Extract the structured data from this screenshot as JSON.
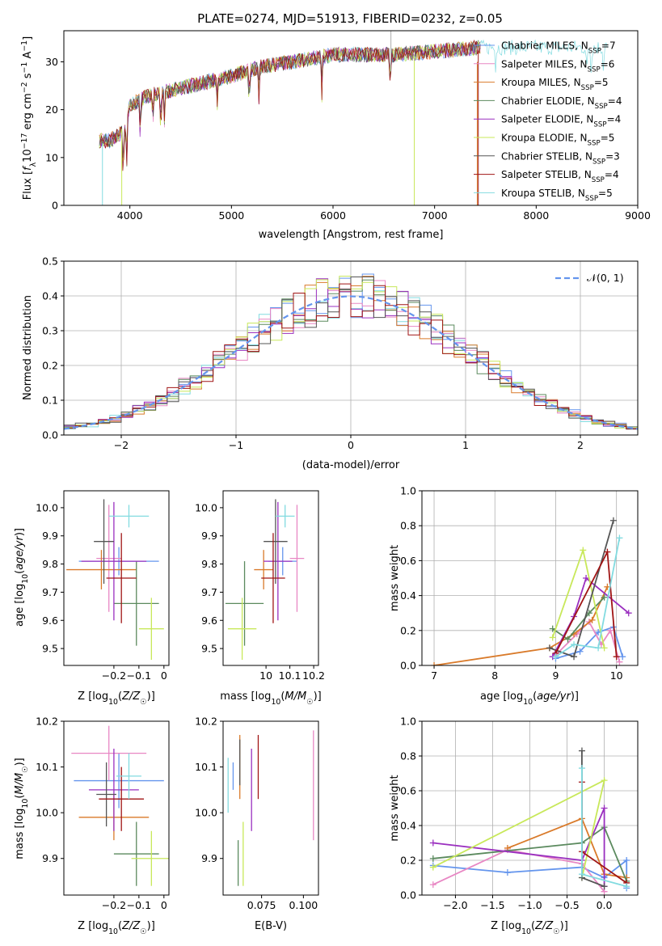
{
  "figure_title": "PLATE=0274, MJD=51913, FIBERID=0232, z=0.05",
  "colors": {
    "Chabrier MILES": "#6495ed",
    "Salpeter MILES": "#e887c4",
    "Kroupa MILES": "#d97a2a",
    "Chabrier ELODIE": "#5b8a5e",
    "Salpeter ELODIE": "#9a2fbf",
    "Kroupa ELODIE": "#c8e85a",
    "Chabrier STELIB": "#555555",
    "Salpeter STELIB": "#a01515",
    "Kroupa STELIB": "#82dbe0"
  },
  "chart_data": [
    {
      "id": "spectrum",
      "type": "line",
      "xlabel": "wavelength [Angstrom, rest frame]",
      "ylabel": "Flux [fλ10⁻¹⁷ erg cm⁻² s⁻¹ A⁻¹]",
      "xlim": [
        3350,
        9000
      ],
      "ylim": [
        0,
        36.5
      ],
      "xticks": [
        4000,
        5000,
        6000,
        7000,
        8000,
        9000
      ],
      "yticks": [
        0,
        10,
        20,
        30
      ],
      "legend_position": "right",
      "continuum_x": [
        3700,
        3800,
        3900,
        3960,
        4000,
        4200,
        4500,
        4800,
        5000,
        5300,
        5600,
        6000,
        6300,
        6600,
        6900,
        7200,
        7450
      ],
      "continuum_y": [
        13.5,
        13.5,
        15,
        16,
        21,
        23,
        24.5,
        26,
        27,
        29,
        30,
        31.5,
        31.5,
        31.5,
        32,
        32.5,
        33
      ],
      "spectrum_end_x": [
        7450,
        7450,
        7450,
        7450,
        7450,
        7450,
        7450,
        7450,
        8700
      ],
      "series": [
        {
          "name": "Chabrier MILES",
          "nssp": "7"
        },
        {
          "name": "Salpeter MILES",
          "nssp": "6"
        },
        {
          "name": "Kroupa MILES",
          "nssp": "5"
        },
        {
          "name": "Chabrier ELODIE",
          "nssp": "4"
        },
        {
          "name": "Salpeter ELODIE",
          "nssp": "4"
        },
        {
          "name": "Kroupa ELODIE",
          "nssp": "5"
        },
        {
          "name": "Chabrier STELIB",
          "nssp": "3"
        },
        {
          "name": "Salpeter STELIB",
          "nssp": "4"
        },
        {
          "name": "Kroupa STELIB",
          "nssp": "5"
        }
      ]
    },
    {
      "id": "residuals",
      "type": "bar",
      "xlabel": "(data-model)/error",
      "ylabel": "Normed distribution",
      "xlim": [
        -2.5,
        2.5
      ],
      "ylim": [
        0,
        0.5
      ],
      "xticks": [
        -2,
        -1,
        0,
        1,
        2
      ],
      "yticks": [
        0.0,
        0.1,
        0.2,
        0.3,
        0.4,
        0.5
      ],
      "bin_width": 0.1,
      "gaussian_label": "𝒩(0, 1)",
      "legend_position": "top-right",
      "grid": true
    },
    {
      "id": "age-vs-Z",
      "type": "scatter",
      "xlabel": "Z [log₁₀(Z/Z☉)]",
      "ylabel": "age  [log₁₀(age/yr)]",
      "xlim": [
        -0.4,
        0.02
      ],
      "ylim": [
        9.44,
        10.06
      ],
      "xticks": [
        -0.2,
        -0.1,
        0.0
      ],
      "yticks": [
        9.5,
        9.6,
        9.7,
        9.8,
        9.9,
        10.0
      ],
      "points": [
        {
          "x": -0.18,
          "xerr": 0.16,
          "y": 9.81,
          "yerr": 0.05
        },
        {
          "x": -0.22,
          "xerr": 0.05,
          "y": 9.82,
          "yerr": 0.19
        },
        {
          "x": -0.25,
          "xerr": 0.14,
          "y": 9.78,
          "yerr": 0.07
        },
        {
          "x": -0.11,
          "xerr": 0.09,
          "y": 9.66,
          "yerr": 0.15
        },
        {
          "x": -0.2,
          "xerr": 0.13,
          "y": 9.81,
          "yerr": 0.21
        },
        {
          "x": -0.05,
          "xerr": 0.05,
          "y": 9.57,
          "yerr": 0.11
        },
        {
          "x": -0.24,
          "xerr": 0.04,
          "y": 9.88,
          "yerr": 0.15
        },
        {
          "x": -0.17,
          "xerr": 0.06,
          "y": 9.75,
          "yerr": 0.16
        },
        {
          "x": -0.14,
          "xerr": 0.08,
          "y": 9.97,
          "yerr": 0.04
        }
      ]
    },
    {
      "id": "age-vs-mass",
      "type": "scatter",
      "xlabel": "mass [log₁₀(M/M☉)]",
      "ylabel": "",
      "xlim": [
        9.82,
        10.22
      ],
      "ylim": [
        9.44,
        10.06
      ],
      "xticks": [
        10.0,
        10.1,
        10.2
      ],
      "yticks": [
        9.5,
        9.6,
        9.7,
        9.8,
        9.9,
        10.0
      ],
      "points": [
        {
          "x": 10.07,
          "xerr": 0.06,
          "y": 9.81,
          "yerr": 0.05
        },
        {
          "x": 10.13,
          "xerr": 0.03,
          "y": 9.82,
          "yerr": 0.19
        },
        {
          "x": 9.99,
          "xerr": 0.04,
          "y": 9.78,
          "yerr": 0.07
        },
        {
          "x": 9.91,
          "xerr": 0.08,
          "y": 9.66,
          "yerr": 0.15
        },
        {
          "x": 10.05,
          "xerr": 0.06,
          "y": 9.81,
          "yerr": 0.21
        },
        {
          "x": 9.9,
          "xerr": 0.06,
          "y": 9.57,
          "yerr": 0.11
        },
        {
          "x": 10.04,
          "xerr": 0.05,
          "y": 9.88,
          "yerr": 0.15
        },
        {
          "x": 10.03,
          "xerr": 0.05,
          "y": 9.75,
          "yerr": 0.16
        },
        {
          "x": 10.08,
          "xerr": 0.04,
          "y": 9.97,
          "yerr": 0.04
        }
      ]
    },
    {
      "id": "weights-vs-age",
      "type": "line",
      "xlabel": "age  [log₁₀(age/yr)]",
      "ylabel": "mass weight",
      "xlim": [
        6.8,
        10.35
      ],
      "ylim": [
        0,
        1.0
      ],
      "xticks": [
        7,
        8,
        9,
        10
      ],
      "yticks": [
        0.0,
        0.2,
        0.4,
        0.6,
        0.8,
        1.0
      ],
      "grid": true,
      "series": [
        {
          "name": "Chabrier MILES",
          "x": [
            9.0,
            9.4,
            9.7,
            9.95,
            10.1
          ],
          "y": [
            0.04,
            0.08,
            0.19,
            0.22,
            0.05
          ]
        },
        {
          "name": "Salpeter MILES",
          "x": [
            9.0,
            9.35,
            9.55,
            9.75,
            9.9,
            10.05
          ],
          "y": [
            0.06,
            0.18,
            0.25,
            0.12,
            0.2,
            0.02
          ]
        },
        {
          "name": "Kroupa MILES",
          "x": [
            7.0,
            8.9,
            9.3,
            9.6,
            9.85
          ],
          "y": [
            0.0,
            0.1,
            0.18,
            0.26,
            0.45
          ]
        },
        {
          "name": "Chabrier ELODIE",
          "x": [
            8.95,
            9.2,
            9.55,
            9.8
          ],
          "y": [
            0.21,
            0.15,
            0.3,
            0.39
          ]
        },
        {
          "name": "Salpeter ELODIE",
          "x": [
            8.95,
            9.3,
            9.5,
            10.2
          ],
          "y": [
            0.05,
            0.28,
            0.5,
            0.3
          ]
        },
        {
          "name": "Kroupa ELODIE",
          "x": [
            8.95,
            9.45,
            9.8
          ],
          "y": [
            0.16,
            0.66,
            0.1
          ]
        },
        {
          "name": "Chabrier STELIB",
          "x": [
            8.9,
            9.3,
            9.95
          ],
          "y": [
            0.1,
            0.05,
            0.83
          ]
        },
        {
          "name": "Salpeter STELIB",
          "x": [
            9.0,
            9.85,
            10.0
          ],
          "y": [
            0.07,
            0.65,
            0.05
          ]
        },
        {
          "name": "Kroupa STELIB",
          "x": [
            9.0,
            9.3,
            9.7,
            10.05
          ],
          "y": [
            0.05,
            0.12,
            0.1,
            0.73
          ]
        }
      ]
    },
    {
      "id": "mass-vs-Z",
      "type": "scatter",
      "xlabel": "Z [log₁₀(Z/Z☉)]",
      "ylabel": "mass [log₁₀(M/M☉)]",
      "xlim": [
        -0.4,
        0.02
      ],
      "ylim": [
        9.82,
        10.2
      ],
      "xticks": [
        -0.2,
        -0.1,
        0.0
      ],
      "yticks": [
        9.9,
        10.0,
        10.1,
        10.2
      ],
      "points": [
        {
          "x": -0.18,
          "xerr": 0.18,
          "y": 10.07,
          "yerr": 0.06
        },
        {
          "x": -0.22,
          "xerr": 0.15,
          "y": 10.13,
          "yerr": 0.06
        },
        {
          "x": -0.2,
          "xerr": 0.14,
          "y": 9.99,
          "yerr": 0.05
        },
        {
          "x": -0.11,
          "xerr": 0.09,
          "y": 9.91,
          "yerr": 0.07
        },
        {
          "x": -0.2,
          "xerr": 0.1,
          "y": 10.05,
          "yerr": 0.09
        },
        {
          "x": -0.05,
          "xerr": 0.08,
          "y": 9.9,
          "yerr": 0.06
        },
        {
          "x": -0.23,
          "xerr": 0.04,
          "y": 10.04,
          "yerr": 0.07
        },
        {
          "x": -0.17,
          "xerr": 0.09,
          "y": 10.03,
          "yerr": 0.07
        },
        {
          "x": -0.14,
          "xerr": 0.05,
          "y": 10.08,
          "yerr": 0.05
        }
      ]
    },
    {
      "id": "mass-vs-ebv",
      "type": "scatter",
      "xlabel": "E(B-V)",
      "ylabel": "",
      "xlim": [
        0.052,
        0.109
      ],
      "ylim": [
        9.82,
        10.2
      ],
      "xticks": [
        0.075,
        0.1
      ],
      "xticklabels": [
        "0.075",
        "0.100"
      ],
      "yticks": [
        9.9,
        10.0,
        10.1,
        10.2
      ],
      "points": [
        {
          "x": 0.058,
          "y": 10.08,
          "yerr": 0.03
        },
        {
          "x": 0.106,
          "y": 10.06,
          "yerr": 0.12
        },
        {
          "x": 0.062,
          "y": 10.1,
          "yerr": 0.07
        },
        {
          "x": 0.061,
          "y": 9.89,
          "yerr": 0.05
        },
        {
          "x": 0.069,
          "y": 10.05,
          "yerr": 0.09
        },
        {
          "x": 0.064,
          "y": 9.91,
          "yerr": 0.07
        },
        {
          "x": 0.062,
          "y": 10.11,
          "yerr": 0.05
        },
        {
          "x": 0.073,
          "y": 10.1,
          "yerr": 0.07
        },
        {
          "x": 0.055,
          "y": 10.06,
          "yerr": 0.06
        }
      ]
    },
    {
      "id": "weights-vs-Z",
      "type": "line",
      "xlabel": "Z [log₁₀(Z/Z☉)]",
      "ylabel": "mass weight",
      "xlim": [
        -2.45,
        0.45
      ],
      "ylim": [
        0,
        1.0
      ],
      "xticks": [
        -2.0,
        -1.5,
        -1.0,
        -0.5,
        0.0
      ],
      "xticklabels": [
        "−2.0",
        "−1.5",
        "−1.0",
        "−0.5",
        "0.0"
      ],
      "yticks": [
        0.0,
        0.2,
        0.4,
        0.6,
        0.8,
        1.0
      ],
      "grid": true,
      "series": [
        {
          "name": "Chabrier MILES",
          "x": [
            -2.3,
            -1.3,
            -0.3,
            0.0,
            0.3,
            0.3
          ],
          "y": [
            0.17,
            0.13,
            0.16,
            0.1,
            0.2,
            0.04
          ]
        },
        {
          "name": "Salpeter MILES",
          "x": [
            -2.3,
            -1.3,
            -0.3,
            0.0
          ],
          "y": [
            0.06,
            0.26,
            0.18,
            0.02
          ]
        },
        {
          "name": "Kroupa MILES",
          "x": [
            -1.3,
            -0.3,
            0.0,
            0.3
          ],
          "y": [
            0.27,
            0.44,
            0.12,
            0.1
          ]
        },
        {
          "name": "Chabrier ELODIE",
          "x": [
            -2.3,
            -0.3,
            0.0,
            0.3
          ],
          "y": [
            0.21,
            0.3,
            0.39,
            0.08
          ]
        },
        {
          "name": "Salpeter ELODIE",
          "x": [
            -2.3,
            -0.3,
            0.0,
            0.0
          ],
          "y": [
            0.3,
            0.2,
            0.5,
            0.05
          ]
        },
        {
          "name": "Kroupa ELODIE",
          "x": [
            -2.3,
            0.0,
            -0.3
          ],
          "y": [
            0.16,
            0.66,
            0.1
          ]
        },
        {
          "name": "Chabrier STELIB",
          "x": [
            -0.3,
            -0.3,
            0.0
          ],
          "y": [
            0.83,
            0.1,
            0.05
          ]
        },
        {
          "name": "Salpeter STELIB",
          "x": [
            -0.3,
            -0.3,
            0.3
          ],
          "y": [
            0.65,
            0.25,
            0.07
          ]
        },
        {
          "name": "Kroupa STELIB",
          "x": [
            -0.3,
            -0.3,
            0.3
          ],
          "y": [
            0.73,
            0.12,
            0.05
          ]
        }
      ]
    }
  ]
}
